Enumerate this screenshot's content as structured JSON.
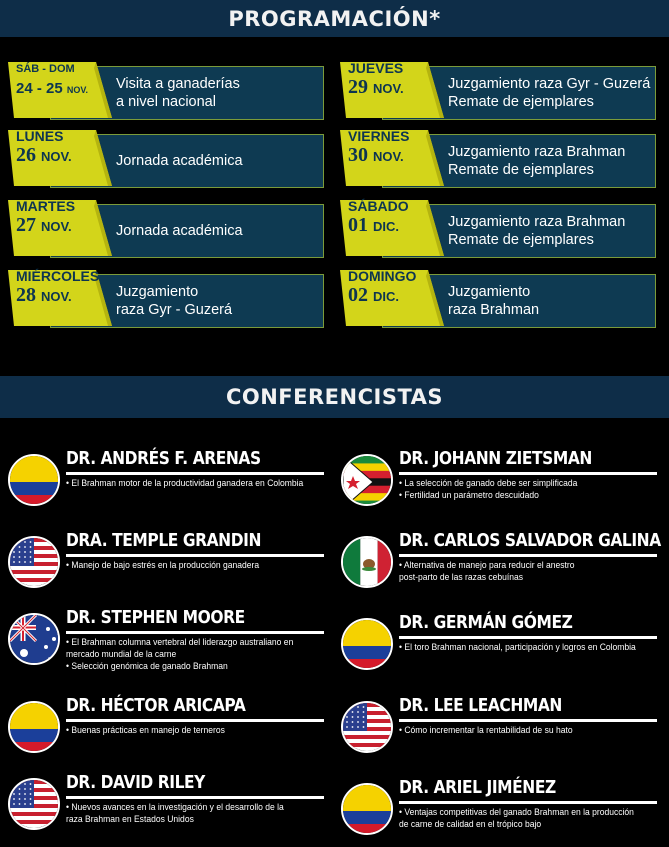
{
  "programacion": {
    "title": "PROGRAMACIÓN*",
    "left": [
      {
        "d1": "SÁB - DOM",
        "d2": "24 - 25",
        "month": "NOV.",
        "l1": "Visita a ganaderías",
        "l2": "a nivel nacional"
      },
      {
        "d1": "LUNES",
        "d2": "26",
        "month": "NOV.",
        "l1": "Jornada académica",
        "l2": ""
      },
      {
        "d1": "MARTES",
        "d2": "27",
        "month": "NOV.",
        "l1": "Jornada académica",
        "l2": ""
      },
      {
        "d1": "MIÉRCOLES",
        "d2": "28",
        "month": "NOV.",
        "l1": "Juzgamiento",
        "l2": "raza Gyr - Guzerá"
      }
    ],
    "right": [
      {
        "d1": "JUEVES",
        "d2": "29",
        "month": "NOV.",
        "l1": "Juzgamiento raza Gyr - Guzerá",
        "l2": "Remate de ejemplares"
      },
      {
        "d1": "VIERNES",
        "d2": "30",
        "month": "NOV.",
        "l1": "Juzgamiento raza Brahman",
        "l2": "Remate de ejemplares"
      },
      {
        "d1": "SÁBADO",
        "d2": "01",
        "month": "DIC.",
        "l1": "Juzgamiento raza Brahman",
        "l2": "Remate de ejemplares"
      },
      {
        "d1": "DOMINGO",
        "d2": "02",
        "month": "DIC.",
        "l1": "Juzgamiento",
        "l2": "raza Brahman"
      }
    ]
  },
  "conferencistas": {
    "title": "CONFERENCISTAS",
    "left": [
      {
        "name": "DR. ANDRÉS F. ARENAS",
        "flag": "colombia-flag-icon",
        "topics": [
          "• El Brahman motor de la productividad ganadera en Colombia"
        ]
      },
      {
        "name": "DRA. TEMPLE GRANDIN",
        "flag": "usa-flag-icon",
        "topics": [
          "• Manejo de bajo estrés en la producción ganadera"
        ]
      },
      {
        "name": "DR. STEPHEN MOORE",
        "flag": "australia-flag-icon",
        "topics": [
          "• El Brahman columna vertebral del liderazgo australiano en",
          "mercado mundial de la carne",
          "• Selección genómica de ganado Brahman"
        ]
      },
      {
        "name": "DR. HÉCTOR ARICAPA",
        "flag": "colombia-flag-icon",
        "topics": [
          "• Buenas prácticas en manejo de terneros"
        ]
      },
      {
        "name": "DR. DAVID RILEY",
        "flag": "usa-flag-icon",
        "topics": [
          "• Nuevos avances en la investigación y el desarrollo de la",
          "raza Brahman en Estados Unidos"
        ]
      }
    ],
    "right": [
      {
        "name": "DR. JOHANN ZIETSMAN",
        "flag": "zimbabwe-flag-icon",
        "topics": [
          "• La selección de ganado debe ser simplificada",
          "• Fertilidad un parámetro descuidado"
        ]
      },
      {
        "name": "DR. CARLOS SALVADOR GALINA",
        "flag": "mexico-flag-icon",
        "topics": [
          "• Alternativa de manejo para reducir el anestro",
          "post-parto de las razas cebuínas"
        ]
      },
      {
        "name": "DR. GERMÁN GÓMEZ",
        "flag": "colombia-flag-icon",
        "topics": [
          "• El toro Brahman nacional, participación y logros en Colombia"
        ]
      },
      {
        "name": "DR. LEE LEACHMAN",
        "flag": "usa-flag-icon",
        "topics": [
          "• Cómo incrementar la rentabilidad de su hato"
        ]
      },
      {
        "name": "DR. ARIEL JIMÉNEZ",
        "flag": "colombia-flag-icon",
        "topics": [
          "• Ventajas competitivas del ganado Brahman en la producción",
          "de carne de calidad en el trópico bajo"
        ]
      }
    ]
  },
  "colors": {
    "section_bar": "#0e2d48",
    "panel": "#0e3a52",
    "date_tag": "#d3d51a",
    "date_text": "#0d3550"
  }
}
